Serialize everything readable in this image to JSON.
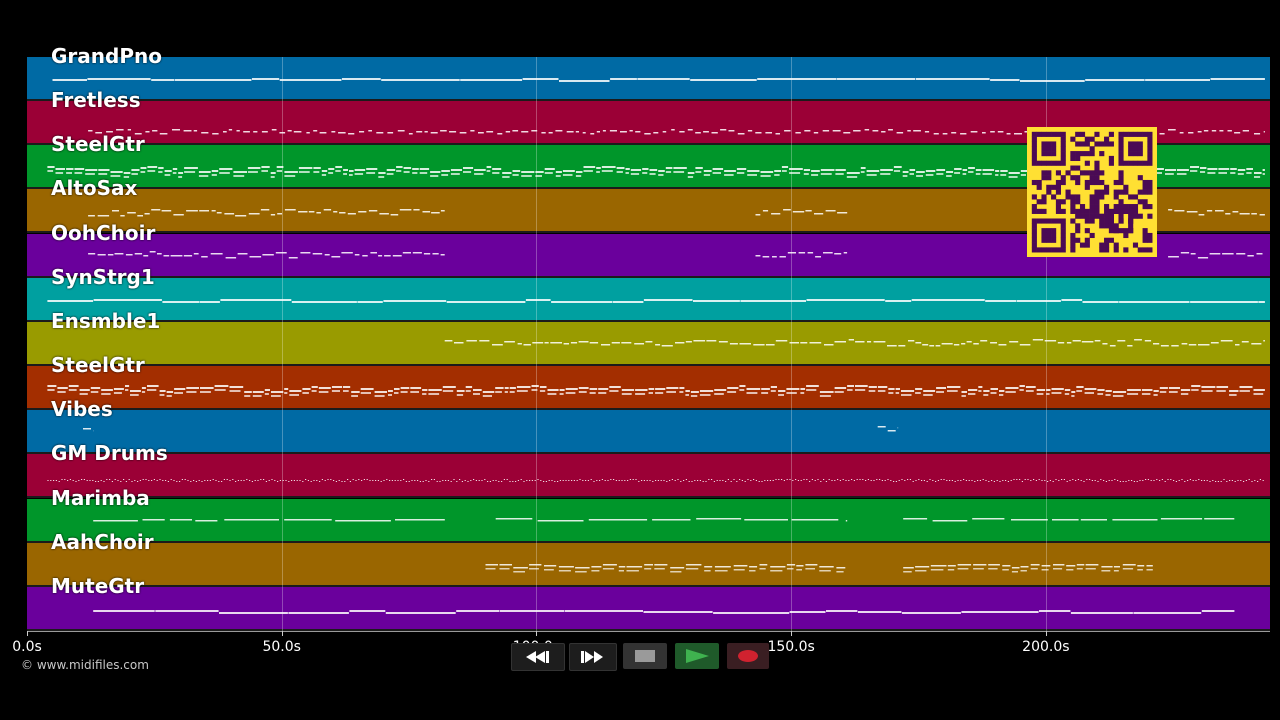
{
  "tracks": [
    {
      "name": "GrandPno",
      "color": "#006aa4"
    },
    {
      "name": "Fretless",
      "color": "#9b0036"
    },
    {
      "name": "SteelGtr",
      "color": "#00962a"
    },
    {
      "name": "AltoSax",
      "color": "#9a6600"
    },
    {
      "name": "OohChoir",
      "color": "#6a009c"
    },
    {
      "name": "SynStrg1",
      "color": "#00a0a0"
    },
    {
      "name": "Ensmble1",
      "color": "#999b00"
    },
    {
      "name": "SteelGtr",
      "color": "#a32e00"
    },
    {
      "name": "Vibes",
      "color": "#006aa4"
    },
    {
      "name": "GM Drums",
      "color": "#9b0036"
    },
    {
      "name": "Marimba",
      "color": "#00962a"
    },
    {
      "name": "AahChoir",
      "color": "#9a6600"
    },
    {
      "name": "MuteGtr",
      "color": "#6a009c"
    }
  ],
  "timeline": {
    "ticks": [
      "0.0s",
      "50.0s",
      "100.0s",
      "150.0s",
      "200.0s"
    ],
    "tick_values": [
      0,
      50,
      100,
      150,
      200
    ],
    "range_seconds": [
      0,
      244
    ]
  },
  "footer": {
    "copyright": "© www.midifiles.com"
  },
  "qr_code": {
    "icon": "qr-code-icon",
    "color": "#4a0a55",
    "background": "#ffe033"
  },
  "transport": {
    "rewind": "rewind-icon",
    "fast_forward": "fast-forward-icon",
    "stop": "stop-icon",
    "play": "play-icon",
    "record": "record-icon"
  }
}
